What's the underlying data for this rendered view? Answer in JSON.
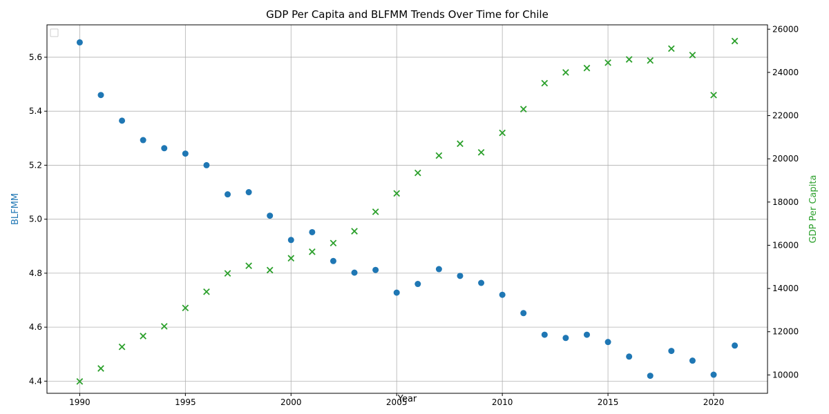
{
  "chart_data": {
    "type": "scatter",
    "title": "GDP Per Capita and BLFMM Trends Over Time for Chile",
    "xlabel": "Year",
    "ylabel_left": "BLFMM",
    "ylabel_right": "GDP Per Capita",
    "xlim": [
      1988.45,
      2022.55
    ],
    "ylim_left": [
      4.355,
      5.72
    ],
    "ylim_right": [
      9150,
      26200
    ],
    "x_ticks": [
      1990,
      1995,
      2000,
      2005,
      2010,
      2015,
      2020
    ],
    "y_ticks_left": [
      4.4,
      4.6,
      4.8,
      5.0,
      5.2,
      5.4,
      5.6
    ],
    "y_ticks_right": [
      10000,
      12000,
      14000,
      16000,
      18000,
      20000,
      22000,
      24000,
      26000
    ],
    "grid": true,
    "legend": "top-left (empty)",
    "colors": {
      "left": "#1f77b4",
      "right": "#2ca02c"
    },
    "x": [
      1990,
      1991,
      1992,
      1993,
      1994,
      1995,
      1996,
      1997,
      1998,
      1999,
      2000,
      2001,
      2002,
      2003,
      2004,
      2005,
      2006,
      2007,
      2008,
      2009,
      2010,
      2011,
      2012,
      2013,
      2014,
      2015,
      2016,
      2017,
      2018,
      2019,
      2020,
      2021
    ],
    "series": [
      {
        "axis": "left",
        "marker": "circle",
        "values": [
          5.655,
          5.46,
          5.365,
          5.293,
          5.263,
          5.243,
          5.2,
          5.092,
          5.1,
          5.013,
          4.923,
          4.952,
          4.845,
          4.802,
          4.812,
          4.728,
          4.76,
          4.815,
          4.79,
          4.764,
          4.72,
          4.652,
          4.572,
          4.56,
          4.572,
          4.545,
          4.491,
          4.42,
          4.512,
          4.476,
          4.424,
          4.532
        ]
      },
      {
        "axis": "right",
        "marker": "x",
        "values": [
          9700,
          10300,
          11300,
          11800,
          12250,
          13100,
          13850,
          14700,
          15050,
          14850,
          15400,
          15700,
          16100,
          16650,
          17550,
          18400,
          19350,
          20150,
          20700,
          20300,
          21200,
          22300,
          23500,
          24000,
          24200,
          24450,
          24600,
          24550,
          25100,
          24800,
          22950,
          25450
        ]
      }
    ]
  }
}
